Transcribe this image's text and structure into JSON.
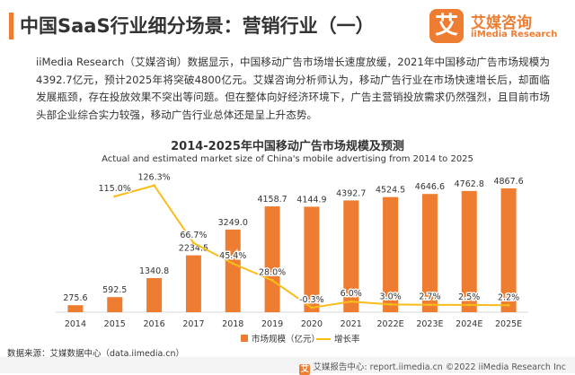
{
  "header": {
    "title": "中国SaaS行业细分场景：营销行业（一）"
  },
  "logo": {
    "mark": "艾",
    "name_cn": "艾媒咨询",
    "name_en": "iiMedia Research"
  },
  "intro": {
    "text": "iiMedia Research（艾媒咨询）数据显示，中国移动广告市场增长速度放缓，2021年中国移动广告市场规模为4392.7亿元，预计2025年将突破4800亿元。艾媒咨询分析师认为，移动广告行业在市场快速增长后，却面临发展瓶颈，存在投放效果不突出等问题。但在整体向好经济环境下，广告主营销投放需求仍然强烈，且目前市场头部企业综合实力较强，移动广告行业总体还是呈上升态势。"
  },
  "chart_data": {
    "type": "bar",
    "title": "2014-2025年中国移动广告市场规模及预测",
    "subtitle": "Actual and estimated market size of China's mobile advertising from 2014 to 2025",
    "categories": [
      "2014",
      "2015",
      "2016",
      "2017",
      "2018",
      "2019",
      "2020",
      "2021",
      "2022E",
      "2023E",
      "2024E",
      "2025E"
    ],
    "series": [
      {
        "name": "市场规模（亿元）",
        "type": "bar",
        "color": "#ee7d31",
        "values": [
          275.6,
          592.5,
          1340.8,
          2234.5,
          3249.0,
          4158.7,
          4144.9,
          4392.7,
          4524.5,
          4646.6,
          4762.8,
          4867.6
        ],
        "labels": [
          "275.6",
          "592.5",
          "1340.8",
          "2234.5",
          "3249.0",
          "4158.7",
          "4144.9",
          "4392.7",
          "4524.5",
          "4646.6",
          "4762.8",
          "4867.6"
        ]
      },
      {
        "name": "增长率",
        "type": "line",
        "color": "#f8bd1b",
        "values": [
          null,
          115.0,
          126.3,
          66.7,
          45.4,
          28.0,
          -0.3,
          6.0,
          3.0,
          2.7,
          2.5,
          2.2
        ],
        "labels": [
          null,
          "115.0%",
          "126.3%",
          "66.7%",
          "45.4%",
          "28.0%",
          "-0.3%",
          "6.0%",
          "3.0%",
          "2.7%",
          "2.5%",
          "2.2%"
        ]
      }
    ],
    "ylim_bar": [
      0,
      5500
    ],
    "ylim_line": [
      -5,
      140
    ],
    "legend": "bottom-center"
  },
  "source": {
    "text": "数据来源：艾媒数据中心（data.iimedia.cn）"
  },
  "footer": {
    "mark": "艾",
    "text": "艾媒报告中心: report.iimedia.cn    ©2022 iiMedia Research Inc"
  }
}
